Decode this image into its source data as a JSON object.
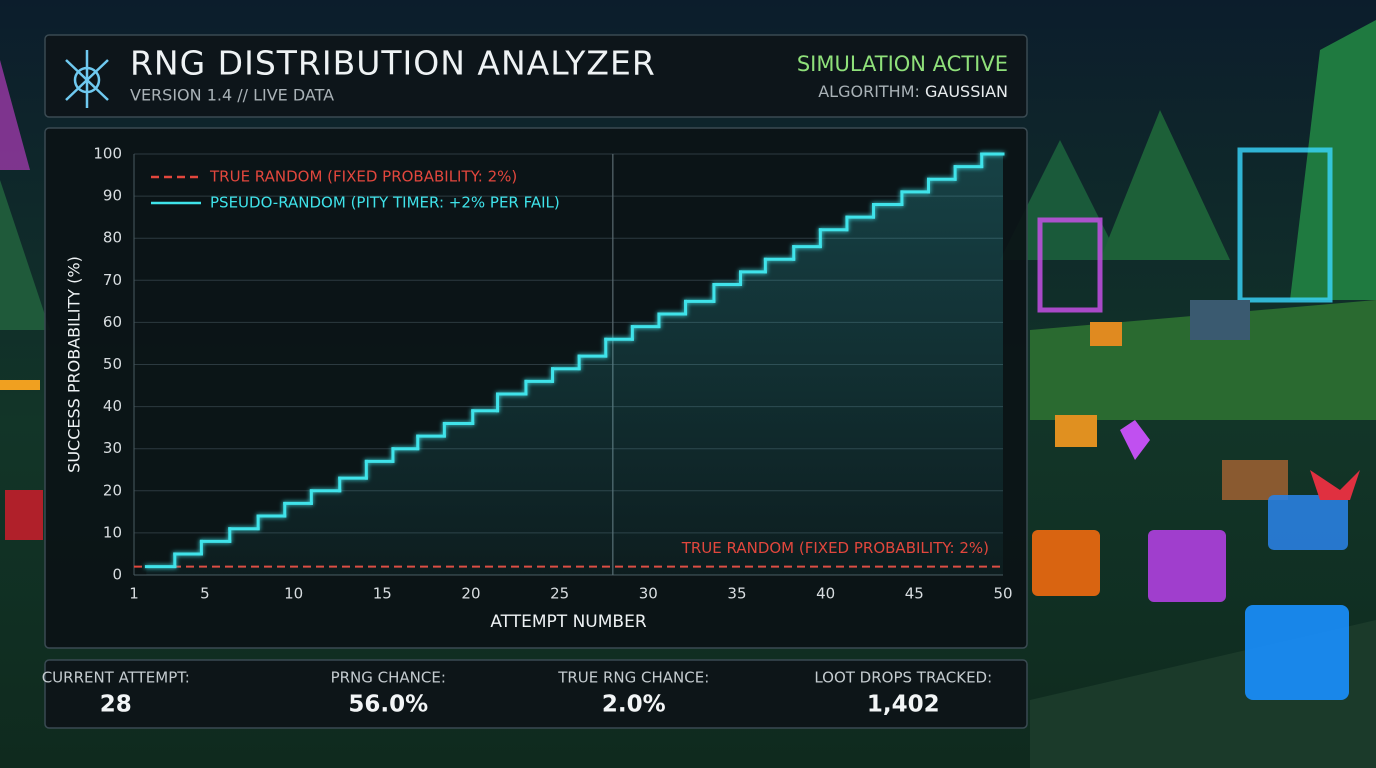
{
  "header": {
    "title": "RNG DISTRIBUTION ANALYZER",
    "subtitle": "VERSION 1.4 // LIVE DATA",
    "status": "SIMULATION ACTIVE",
    "algorithm_label": "ALGORITHM:",
    "algorithm_value": "GAUSSIAN"
  },
  "chart_data": {
    "type": "line",
    "x_label": "ATTEMPT NUMBER",
    "y_label": "SUCCESS PROBABILITY (%)",
    "xlim": [
      1,
      50
    ],
    "ylim": [
      0,
      100
    ],
    "xticks": [
      1,
      5,
      10,
      15,
      20,
      25,
      30,
      35,
      40,
      45,
      50
    ],
    "yticks": [
      0,
      10,
      20,
      30,
      40,
      50,
      60,
      70,
      80,
      90,
      100
    ],
    "grid": true,
    "legend": "upper left",
    "current_attempt_line": 28,
    "annotation": "TRUE RANDOM (FIXED PROBABILITY: 2%)",
    "series": [
      {
        "name": "TRUE RANDOM (FIXED PROBABILITY: 2%)",
        "color": "#e2473d",
        "linestyle": "dashed",
        "x": [
          1,
          50
        ],
        "values": [
          2,
          2
        ]
      },
      {
        "name": "PSEUDO-RANDOM (PITY TIMER: +2% PER FAIL)",
        "color": "#3fe3ea",
        "drawstyle": "steps-post",
        "x": [
          1.7,
          3.3,
          4.8,
          6.4,
          8.0,
          9.5,
          11.0,
          12.6,
          14.1,
          15.6,
          17.0,
          18.5,
          20.1,
          21.5,
          23.1,
          24.6,
          26.1,
          27.6,
          29.1,
          30.6,
          32.1,
          33.7,
          35.2,
          36.6,
          38.2,
          39.7,
          41.2,
          42.7,
          44.3,
          45.8,
          47.3,
          48.8
        ],
        "values": [
          2,
          5,
          8,
          11,
          14,
          17,
          20,
          23,
          27,
          30,
          33,
          36,
          39,
          43,
          46,
          49,
          52,
          56,
          59,
          62,
          65,
          69,
          72,
          75,
          78,
          82,
          85,
          88,
          91,
          94,
          97,
          100
        ]
      }
    ]
  },
  "stats": [
    {
      "label": "CURRENT ATTEMPT:",
      "value": "28"
    },
    {
      "label": "PRNG CHANCE:",
      "value": "56.0%"
    },
    {
      "label": "TRUE RNG CHANCE:",
      "value": "2.0%"
    },
    {
      "label": "LOOT DROPS TRACKED:",
      "value": "1,402"
    }
  ]
}
